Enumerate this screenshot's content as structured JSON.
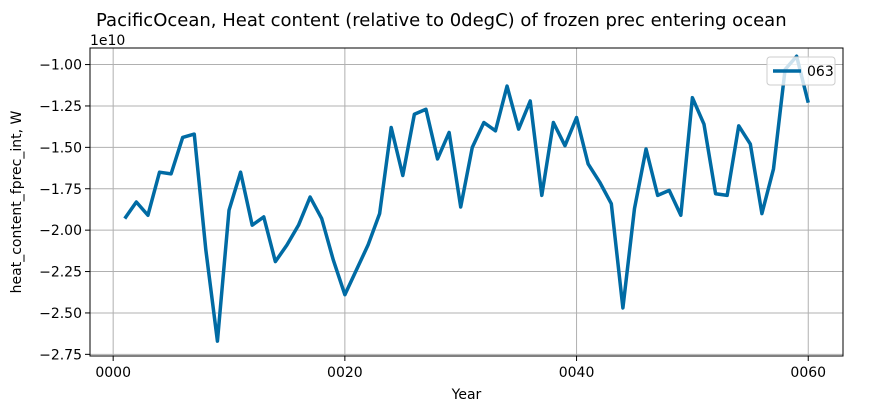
{
  "chart_data": {
    "type": "line",
    "title": "PacificOcean, Heat content (relative to 0degC) of frozen prec entering ocean",
    "xlabel": "Year",
    "ylabel": "heat_content_fprec_int, W",
    "y_multiplier_label": "1e10",
    "xlim": [
      -2,
      63
    ],
    "ylim": [
      -2.76,
      -0.9
    ],
    "x_ticks": [
      0,
      20,
      40,
      60
    ],
    "x_tick_labels": [
      "0000",
      "0020",
      "0040",
      "0060"
    ],
    "y_ticks": [
      -2.75,
      -2.5,
      -2.25,
      -2.0,
      -1.75,
      -1.5,
      -1.25,
      -1.0
    ],
    "y_tick_labels": [
      "−2.75",
      "−2.50",
      "−2.25",
      "−2.00",
      "−1.75",
      "−1.50",
      "−1.25",
      "−1.00"
    ],
    "grid": true,
    "legend_position": "top-right",
    "series": [
      {
        "name": "063",
        "color": "#006ba4",
        "x": [
          1,
          2,
          3,
          4,
          5,
          6,
          7,
          8,
          9,
          10,
          11,
          12,
          13,
          14,
          15,
          16,
          17,
          18,
          19,
          20,
          21,
          22,
          23,
          24,
          25,
          26,
          27,
          28,
          29,
          30,
          31,
          32,
          33,
          34,
          35,
          36,
          37,
          38,
          39,
          40,
          41,
          42,
          43,
          44,
          45,
          46,
          47,
          48,
          49,
          50,
          51,
          52,
          53,
          54,
          55,
          56,
          57,
          58,
          59,
          60
        ],
        "values": [
          -1.93,
          -1.83,
          -1.91,
          -1.65,
          -1.66,
          -1.44,
          -1.42,
          -2.12,
          -2.67,
          -1.88,
          -1.65,
          -1.97,
          -1.92,
          -2.19,
          -2.09,
          -1.97,
          -1.8,
          -1.93,
          -2.18,
          -2.39,
          -2.24,
          -2.09,
          -1.9,
          -1.38,
          -1.67,
          -1.3,
          -1.27,
          -1.57,
          -1.41,
          -1.86,
          -1.5,
          -1.35,
          -1.4,
          -1.13,
          -1.39,
          -1.22,
          -1.79,
          -1.35,
          -1.49,
          -1.32,
          -1.6,
          -1.71,
          -1.84,
          -2.47,
          -1.87,
          -1.51,
          -1.79,
          -1.76,
          -1.91,
          -1.2,
          -1.36,
          -1.78,
          -1.79,
          -1.37,
          -1.48,
          -1.9,
          -1.63,
          -1.03,
          -0.95,
          -1.23
        ]
      }
    ]
  }
}
